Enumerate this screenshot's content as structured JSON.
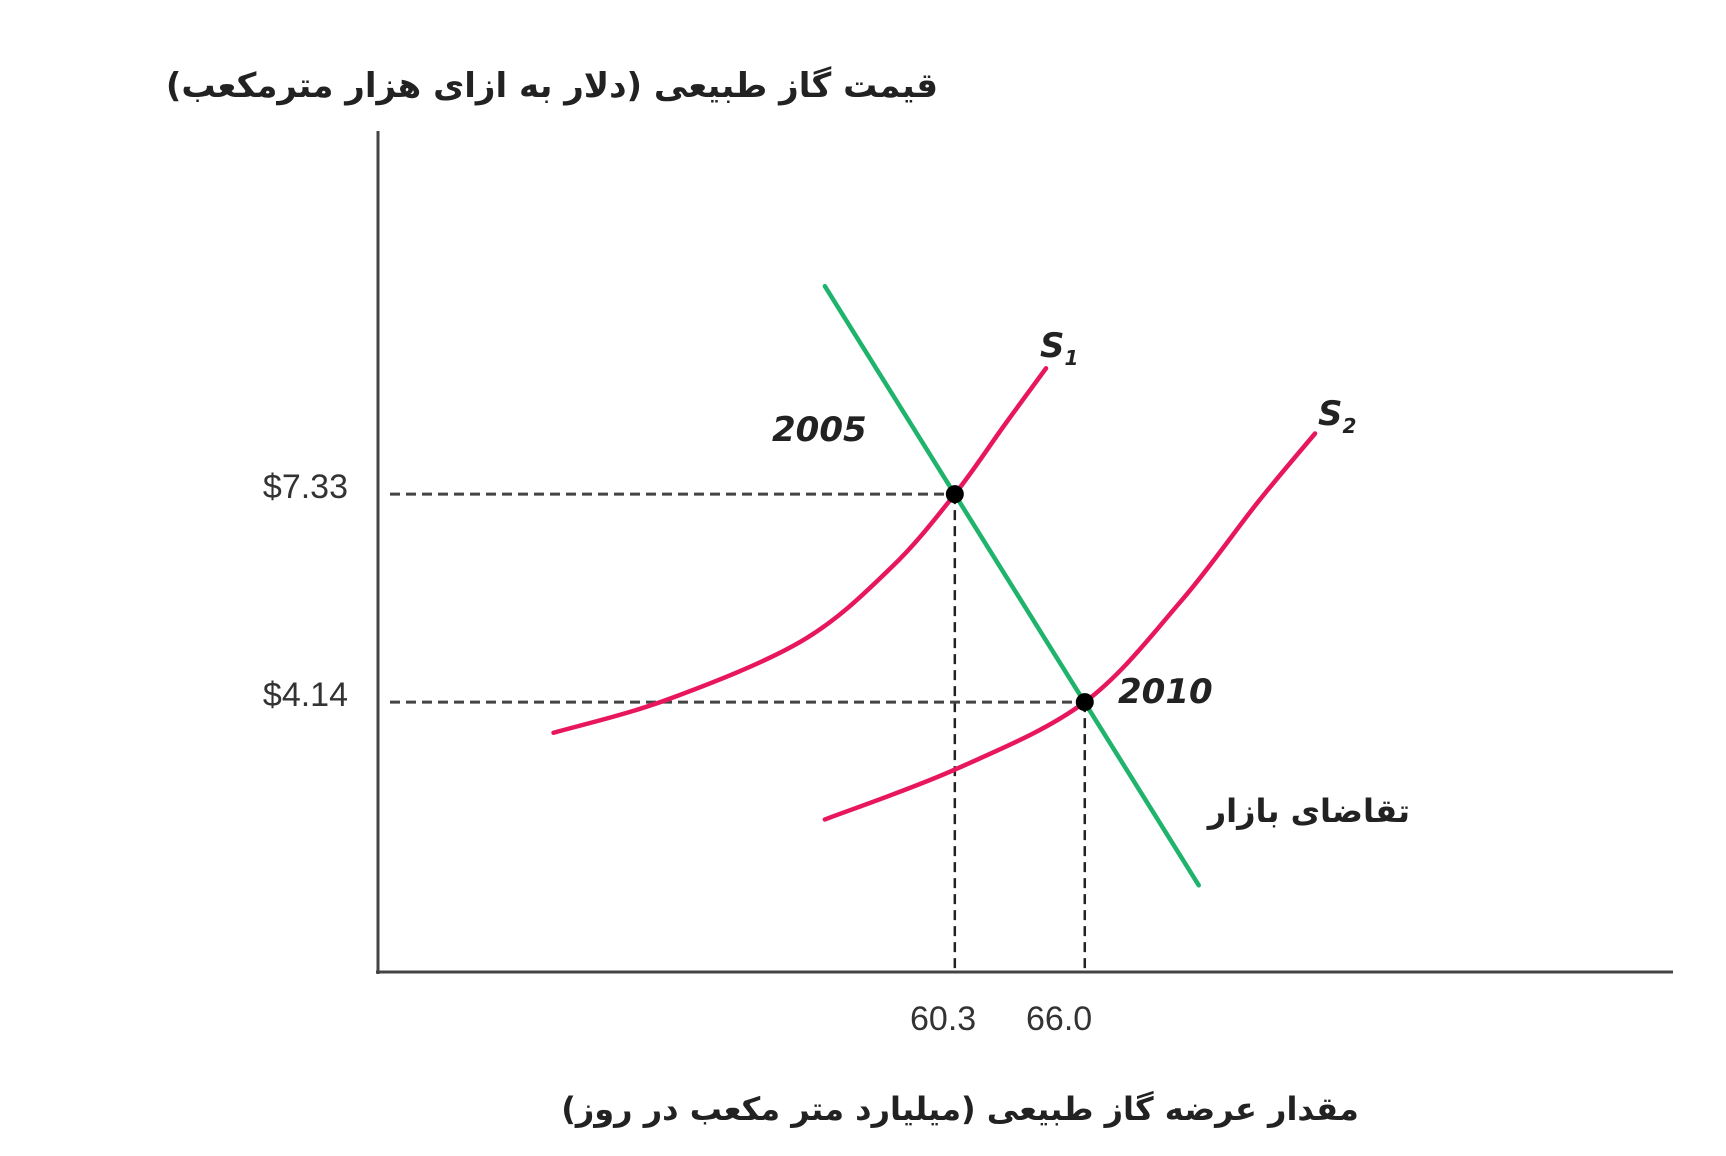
{
  "chart_data": {
    "type": "line",
    "title": "",
    "ylabel": "قیمت گاز طبیعی (دلار به ازای هزار مترمکعب)",
    "xlabel": "مقدار عرضه گاز طبیعی (میلیارد متر مکعب در روز)",
    "xlim": [
      35,
      91.8
    ],
    "ylim": [
      0,
      12.9
    ],
    "grid": false,
    "x_ticks": [
      {
        "value": 60.3,
        "label": "60.3"
      },
      {
        "value": 66.0,
        "label": "66.0"
      }
    ],
    "y_ticks": [
      {
        "value": 7.33,
        "label": "$7.33"
      },
      {
        "value": 4.14,
        "label": "$4.14"
      }
    ],
    "series": [
      {
        "name": "S1",
        "name_main": "S",
        "name_sub": "1",
        "color": "#e8175d",
        "points": [
          [
            42.7,
            3.67
          ],
          [
            47.7,
            4.18
          ],
          [
            53.6,
            5.08
          ],
          [
            57.5,
            6.2
          ],
          [
            60.3,
            7.33
          ],
          [
            62.5,
            8.4
          ],
          [
            64.3,
            9.26
          ]
        ]
      },
      {
        "name": "S2",
        "name_main": "S",
        "name_sub": "2",
        "color": "#e8175d",
        "points": [
          [
            54.6,
            2.34
          ],
          [
            60.4,
            3.12
          ],
          [
            66.0,
            4.14
          ],
          [
            70.2,
            5.68
          ],
          [
            73.6,
            7.21
          ],
          [
            76.1,
            8.26
          ]
        ]
      },
      {
        "name": "تقاضای بازار",
        "color": "#1fb36b",
        "points": [
          [
            54.6,
            10.52
          ],
          [
            71.0,
            1.33
          ]
        ]
      }
    ],
    "equilibria": [
      {
        "label": "2005",
        "x": 60.3,
        "y": 7.33
      },
      {
        "label": "2010",
        "x": 66.0,
        "y": 4.14
      }
    ]
  }
}
